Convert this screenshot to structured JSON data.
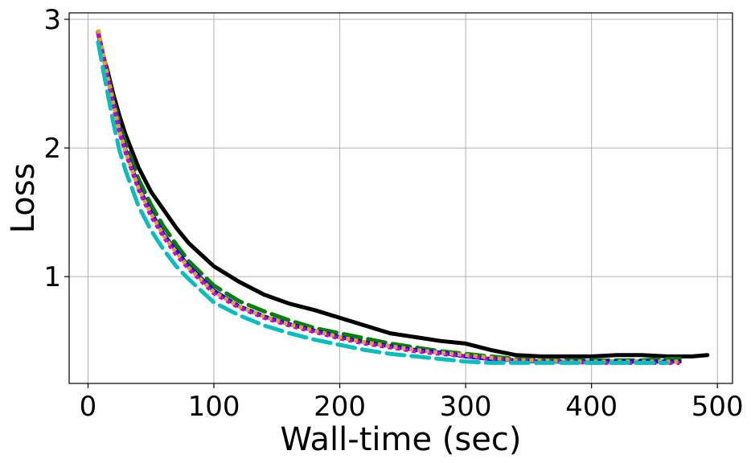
{
  "chart_data": {
    "type": "line",
    "title": "",
    "xlabel": "Wall-time (sec)",
    "ylabel": "Loss",
    "xlim": [
      -15,
      512
    ],
    "ylim": [
      0.17,
      3.05
    ],
    "xticks": [
      0,
      100,
      200,
      300,
      400,
      500
    ],
    "yticks": [
      1,
      2,
      3
    ],
    "xtick_labels": [
      "0",
      "100",
      "200",
      "300",
      "400",
      "500"
    ],
    "ytick_labels": [
      "1",
      "2",
      "3"
    ],
    "grid": true,
    "series": [
      {
        "color": "#000000",
        "dash": "solid",
        "x": [
          8,
          15,
          20,
          25,
          30,
          40,
          50,
          60,
          70,
          80,
          100,
          120,
          140,
          160,
          180,
          200,
          220,
          240,
          260,
          280,
          300,
          320,
          340,
          360,
          380,
          400,
          420,
          440,
          460,
          480,
          492
        ],
        "y": [
          2.82,
          2.62,
          2.42,
          2.25,
          2.1,
          1.85,
          1.66,
          1.52,
          1.38,
          1.26,
          1.08,
          0.96,
          0.86,
          0.79,
          0.74,
          0.68,
          0.62,
          0.56,
          0.53,
          0.5,
          0.48,
          0.43,
          0.39,
          0.38,
          0.38,
          0.38,
          0.39,
          0.39,
          0.38,
          0.38,
          0.39
        ]
      },
      {
        "color": "#008000",
        "dash": "dashed",
        "x": [
          8,
          15,
          20,
          25,
          30,
          40,
          50,
          60,
          70,
          80,
          100,
          120,
          140,
          160,
          180,
          200,
          220,
          240,
          260,
          280,
          300,
          320,
          340,
          360,
          380,
          400,
          420,
          440,
          460,
          470
        ],
        "y": [
          2.9,
          2.6,
          2.38,
          2.18,
          2.03,
          1.76,
          1.56,
          1.39,
          1.25,
          1.12,
          0.93,
          0.81,
          0.73,
          0.66,
          0.6,
          0.56,
          0.52,
          0.48,
          0.45,
          0.42,
          0.4,
          0.38,
          0.36,
          0.35,
          0.35,
          0.35,
          0.35,
          0.35,
          0.36,
          0.36
        ]
      },
      {
        "color": "#0000ff",
        "dash": "solid",
        "x": [
          8,
          15,
          20,
          25,
          30,
          40,
          50,
          60,
          70,
          80,
          100,
          120,
          140,
          160,
          180,
          200,
          220,
          240,
          260,
          280,
          300,
          320,
          340,
          360,
          380,
          400,
          420,
          440,
          460,
          470
        ],
        "y": [
          2.9,
          2.58,
          2.35,
          2.14,
          1.98,
          1.7,
          1.5,
          1.33,
          1.2,
          1.08,
          0.89,
          0.77,
          0.69,
          0.63,
          0.58,
          0.53,
          0.49,
          0.46,
          0.43,
          0.41,
          0.38,
          0.36,
          0.35,
          0.34,
          0.34,
          0.34,
          0.34,
          0.34,
          0.34,
          0.34
        ]
      },
      {
        "color": "#cc00cc",
        "dash": "dotted",
        "x": [
          8,
          15,
          20,
          25,
          30,
          40,
          50,
          60,
          70,
          80,
          100,
          120,
          140,
          160,
          180,
          200,
          220,
          240,
          260,
          280,
          300,
          320,
          340,
          360,
          380,
          400,
          420,
          440,
          460,
          470
        ],
        "y": [
          2.89,
          2.56,
          2.33,
          2.12,
          1.96,
          1.68,
          1.47,
          1.31,
          1.17,
          1.06,
          0.87,
          0.76,
          0.68,
          0.62,
          0.57,
          0.52,
          0.48,
          0.45,
          0.42,
          0.4,
          0.38,
          0.36,
          0.35,
          0.34,
          0.34,
          0.33,
          0.33,
          0.33,
          0.33,
          0.33
        ]
      },
      {
        "color": "#daa520",
        "dash": "dotted",
        "x": [
          8,
          15,
          20,
          25,
          30,
          40,
          50,
          60,
          70,
          80,
          100,
          120,
          140,
          160,
          180,
          200,
          220,
          240,
          260,
          280,
          300,
          320,
          340,
          360,
          380,
          400,
          420,
          440,
          460,
          470
        ],
        "y": [
          2.92,
          2.58,
          2.35,
          2.13,
          1.97,
          1.69,
          1.49,
          1.32,
          1.19,
          1.07,
          0.88,
          0.77,
          0.69,
          0.63,
          0.58,
          0.53,
          0.49,
          0.46,
          0.43,
          0.41,
          0.39,
          0.37,
          0.35,
          0.35,
          0.34,
          0.34,
          0.34,
          0.34,
          0.34,
          0.34
        ]
      },
      {
        "color": "#00bfbf",
        "dash": "dashed",
        "x": [
          8,
          15,
          20,
          25,
          30,
          40,
          50,
          60,
          70,
          80,
          100,
          120,
          140,
          160,
          180,
          200,
          220,
          240,
          260,
          280,
          300,
          320,
          340,
          360,
          380,
          400,
          420,
          440,
          460
        ],
        "y": [
          2.82,
          2.45,
          2.2,
          1.98,
          1.82,
          1.55,
          1.36,
          1.21,
          1.08,
          0.98,
          0.8,
          0.7,
          0.62,
          0.56,
          0.51,
          0.47,
          0.43,
          0.4,
          0.38,
          0.36,
          0.34,
          0.33,
          0.33,
          0.33,
          0.33,
          0.33,
          0.33,
          0.33,
          0.33
        ]
      }
    ]
  }
}
